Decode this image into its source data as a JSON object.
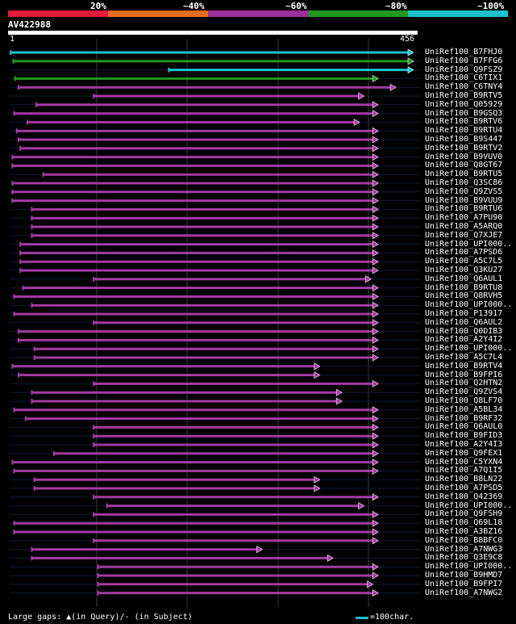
{
  "scale": {
    "labels": [
      "20%",
      "~40%",
      "~60%",
      "~80%",
      "~100%"
    ],
    "colors": [
      "#e31a39",
      "#e86c1f",
      "#9b2f9c",
      "#1e9a1e",
      "#1dc1c9"
    ]
  },
  "query": {
    "id": "AV422988",
    "start": "1",
    "end": "456",
    "length": 456
  },
  "hits": [
    {
      "label": "UniRef100_B7FHJ0",
      "start": 1,
      "end": 456,
      "color": "cyan"
    },
    {
      "label": "UniRef100_B7FFG6",
      "start": 4,
      "end": 456,
      "color": "green"
    },
    {
      "label": "UniRef100_Q9FSZ9",
      "start": 180,
      "end": 456,
      "color": "cyan"
    },
    {
      "label": "UniRef100_C6TIX1",
      "start": 6,
      "end": 416,
      "color": "green"
    },
    {
      "label": "UniRef100_C6TNY4",
      "start": 10,
      "end": 436,
      "color": "purple"
    },
    {
      "label": "UniRef100_B9RTV5",
      "start": 95,
      "end": 400,
      "color": "purple"
    },
    {
      "label": "UniRef100_Q05929",
      "start": 30,
      "end": 416,
      "color": "purple"
    },
    {
      "label": "UniRef100_B9GSQ3",
      "start": 5,
      "end": 416,
      "color": "purple"
    },
    {
      "label": "UniRef100_B9RTV6",
      "start": 20,
      "end": 395,
      "color": "purple"
    },
    {
      "label": "UniRef100_B9RTU4",
      "start": 8,
      "end": 416,
      "color": "purple"
    },
    {
      "label": "UniRef100_B9S447",
      "start": 10,
      "end": 416,
      "color": "purple"
    },
    {
      "label": "UniRef100_B9RTV2",
      "start": 12,
      "end": 416,
      "color": "purple"
    },
    {
      "label": "UniRef100_B9VUV0",
      "start": 3,
      "end": 416,
      "color": "purple"
    },
    {
      "label": "UniRef100_Q8GT67",
      "start": 3,
      "end": 416,
      "color": "purple"
    },
    {
      "label": "UniRef100_B9RTU5",
      "start": 38,
      "end": 416,
      "color": "purple"
    },
    {
      "label": "UniRef100_Q3SC86",
      "start": 3,
      "end": 416,
      "color": "purple"
    },
    {
      "label": "UniRef100_Q9ZVS5",
      "start": 3,
      "end": 416,
      "color": "purple"
    },
    {
      "label": "UniRef100_B9VUU9",
      "start": 3,
      "end": 416,
      "color": "purple"
    },
    {
      "label": "UniRef100_B9RTU6",
      "start": 25,
      "end": 416,
      "color": "purple"
    },
    {
      "label": "UniRef100_A7PU90",
      "start": 25,
      "end": 416,
      "color": "purple"
    },
    {
      "label": "UniRef100_A5ARQ0",
      "start": 25,
      "end": 416,
      "color": "purple"
    },
    {
      "label": "UniRef100_Q7XJE7",
      "start": 25,
      "end": 416,
      "color": "purple"
    },
    {
      "label": "UniRef100_UPI000..",
      "start": 12,
      "end": 416,
      "color": "purple"
    },
    {
      "label": "UniRef100_A7PSD6",
      "start": 12,
      "end": 416,
      "color": "purple"
    },
    {
      "label": "UniRef100_A5C7L5",
      "start": 12,
      "end": 416,
      "color": "purple"
    },
    {
      "label": "UniRef100_Q3KU27",
      "start": 12,
      "end": 416,
      "color": "purple"
    },
    {
      "label": "UniRef100_Q6AUL1",
      "start": 95,
      "end": 408,
      "color": "purple"
    },
    {
      "label": "UniRef100_B9RTU8",
      "start": 15,
      "end": 416,
      "color": "purple"
    },
    {
      "label": "UniRef100_Q8RVH5",
      "start": 5,
      "end": 416,
      "color": "purple"
    },
    {
      "label": "UniRef100_UPI000..",
      "start": 25,
      "end": 416,
      "color": "purple"
    },
    {
      "label": "UniRef100_P13917",
      "start": 5,
      "end": 416,
      "color": "purple"
    },
    {
      "label": "UniRef100_Q6AUL2",
      "start": 95,
      "end": 416,
      "color": "purple"
    },
    {
      "label": "UniRef100_Q0DIB3",
      "start": 10,
      "end": 416,
      "color": "purple"
    },
    {
      "label": "UniRef100_A2Y4I2",
      "start": 10,
      "end": 416,
      "color": "purple"
    },
    {
      "label": "UniRef100_UPI000..",
      "start": 28,
      "end": 416,
      "color": "purple"
    },
    {
      "label": "UniRef100_A5C7L4",
      "start": 28,
      "end": 416,
      "color": "purple"
    },
    {
      "label": "UniRef100_B9RTV4",
      "start": 3,
      "end": 350,
      "color": "purple"
    },
    {
      "label": "UniRef100_B9FPI6",
      "start": 10,
      "end": 350,
      "color": "purple"
    },
    {
      "label": "UniRef100_Q2HTN2",
      "start": 95,
      "end": 416,
      "color": "purple"
    },
    {
      "label": "UniRef100_Q9ZVS4",
      "start": 25,
      "end": 375,
      "color": "purple"
    },
    {
      "label": "UniRef100_Q8LF70",
      "start": 25,
      "end": 375,
      "color": "purple"
    },
    {
      "label": "UniRef100_A5BL34",
      "start": 5,
      "end": 416,
      "color": "purple"
    },
    {
      "label": "UniRef100_B9RF32",
      "start": 18,
      "end": 416,
      "color": "purple"
    },
    {
      "label": "UniRef100_Q6AUL0",
      "start": 95,
      "end": 416,
      "color": "purple"
    },
    {
      "label": "UniRef100_B9FID3",
      "start": 95,
      "end": 416,
      "color": "purple"
    },
    {
      "label": "UniRef100_A2Y4I3",
      "start": 95,
      "end": 416,
      "color": "purple"
    },
    {
      "label": "UniRef100_Q9FEX1",
      "start": 50,
      "end": 416,
      "color": "purple"
    },
    {
      "label": "UniRef100_C5YXN4",
      "start": 3,
      "end": 416,
      "color": "purple"
    },
    {
      "label": "UniRef100_A7Q1I5",
      "start": 5,
      "end": 416,
      "color": "purple"
    },
    {
      "label": "UniRef100_B8LN22",
      "start": 28,
      "end": 350,
      "color": "purple"
    },
    {
      "label": "UniRef100_A7PSD5",
      "start": 28,
      "end": 350,
      "color": "purple"
    },
    {
      "label": "UniRef100_Q42369",
      "start": 95,
      "end": 416,
      "color": "purple"
    },
    {
      "label": "UniRef100_UPI000..",
      "start": 110,
      "end": 400,
      "color": "purple"
    },
    {
      "label": "UniRef100_Q9FSH9",
      "start": 95,
      "end": 416,
      "color": "purple"
    },
    {
      "label": "UniRef100_Q69L18",
      "start": 5,
      "end": 416,
      "color": "purple"
    },
    {
      "label": "UniRef100_A3BZ16",
      "start": 5,
      "end": 416,
      "color": "purple"
    },
    {
      "label": "UniRef100_B8BFC0",
      "start": 95,
      "end": 416,
      "color": "purple"
    },
    {
      "label": "UniRef100_A7NWG3",
      "start": 25,
      "end": 285,
      "color": "purple"
    },
    {
      "label": "UniRef100_Q3E9C8",
      "start": 25,
      "end": 365,
      "color": "purple"
    },
    {
      "label": "UniRef100_UPI000..",
      "start": 100,
      "end": 416,
      "color": "purple"
    },
    {
      "label": "UniRef100_B9HMD7",
      "start": 100,
      "end": 416,
      "color": "purple"
    },
    {
      "label": "UniRef100_B9FPI7",
      "start": 100,
      "end": 410,
      "color": "purple"
    },
    {
      "label": "UniRef100_A7NWG2",
      "start": 100,
      "end": 416,
      "color": "purple"
    }
  ],
  "legend": {
    "gaps_text": "Large gaps: ▲(in Query)/- (in Subject)",
    "scale_text": "=100char."
  }
}
